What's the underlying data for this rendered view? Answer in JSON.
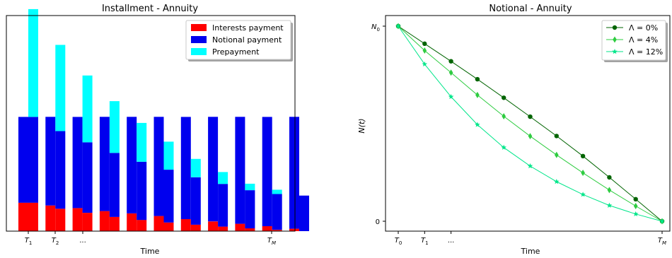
{
  "chart_data": [
    {
      "type": "bar",
      "title": "Installment - Annuity",
      "xlabel": "Time",
      "ylabel": "",
      "stacked": true,
      "paired_bars": true,
      "grid": false,
      "legend_position": "top-right",
      "colors": {
        "Interests payment": "#ff0000",
        "Notional payment": "#0000ee",
        "Prepayment": "#00ffff"
      },
      "ylim": [
        0,
        1.0
      ],
      "x_tick_labels": [
        "T_1",
        "T_2",
        "...",
        "T_M"
      ],
      "series": [
        {
          "name": "Interests payment",
          "values_left": [
            0.132,
            0.119,
            0.107,
            0.093,
            0.082,
            0.07,
            0.056,
            0.045,
            0.034,
            0.023,
            0.011
          ],
          "values_right": [
            0.132,
            0.104,
            0.085,
            0.066,
            0.052,
            0.04,
            0.03,
            0.021,
            0.013,
            0.006,
            0.0
          ]
        },
        {
          "name": "Notional payment",
          "values_left": [
            0.398,
            0.411,
            0.423,
            0.437,
            0.448,
            0.46,
            0.474,
            0.485,
            0.496,
            0.507,
            0.519
          ],
          "values_right": [
            0.398,
            0.36,
            0.327,
            0.297,
            0.27,
            0.245,
            0.22,
            0.198,
            0.177,
            0.166,
            0.165
          ]
        },
        {
          "name": "Prepayment",
          "values_left": [
            0,
            0,
            0,
            0,
            0,
            0,
            0,
            0,
            0,
            0,
            0
          ],
          "values_right": [
            0.5,
            0.4,
            0.31,
            0.24,
            0.18,
            0.13,
            0.085,
            0.055,
            0.03,
            0.02,
            0.0
          ]
        }
      ]
    },
    {
      "type": "line",
      "title": "Notional - Annuity",
      "xlabel": "Time",
      "ylabel": "N(t)",
      "grid": false,
      "legend_position": "top-right",
      "x_tick_labels": [
        "T_0",
        "T_1",
        "...",
        "T_M"
      ],
      "y_tick_labels": [
        "N_0",
        "0"
      ],
      "xlim": [
        0,
        10
      ],
      "ylim": [
        0,
        1
      ],
      "x": [
        0,
        1,
        2,
        3,
        4,
        5,
        6,
        7,
        8,
        9,
        10
      ],
      "series": [
        {
          "name": "Λ = 0%",
          "color": "#006400",
          "marker": "circle",
          "values": [
            1.0,
            0.91,
            0.82,
            0.728,
            0.633,
            0.536,
            0.437,
            0.334,
            0.225,
            0.113,
            0.0
          ]
        },
        {
          "name": "Λ = 4%",
          "color": "#2ecc40",
          "marker": "diamond",
          "values": [
            1.0,
            0.875,
            0.762,
            0.647,
            0.538,
            0.436,
            0.34,
            0.248,
            0.16,
            0.078,
            0.0
          ]
        },
        {
          "name": "Λ = 12%",
          "color": "#00e68a",
          "marker": "star",
          "values": [
            1.0,
            0.805,
            0.638,
            0.495,
            0.378,
            0.283,
            0.203,
            0.137,
            0.081,
            0.037,
            0.0
          ]
        }
      ]
    }
  ]
}
